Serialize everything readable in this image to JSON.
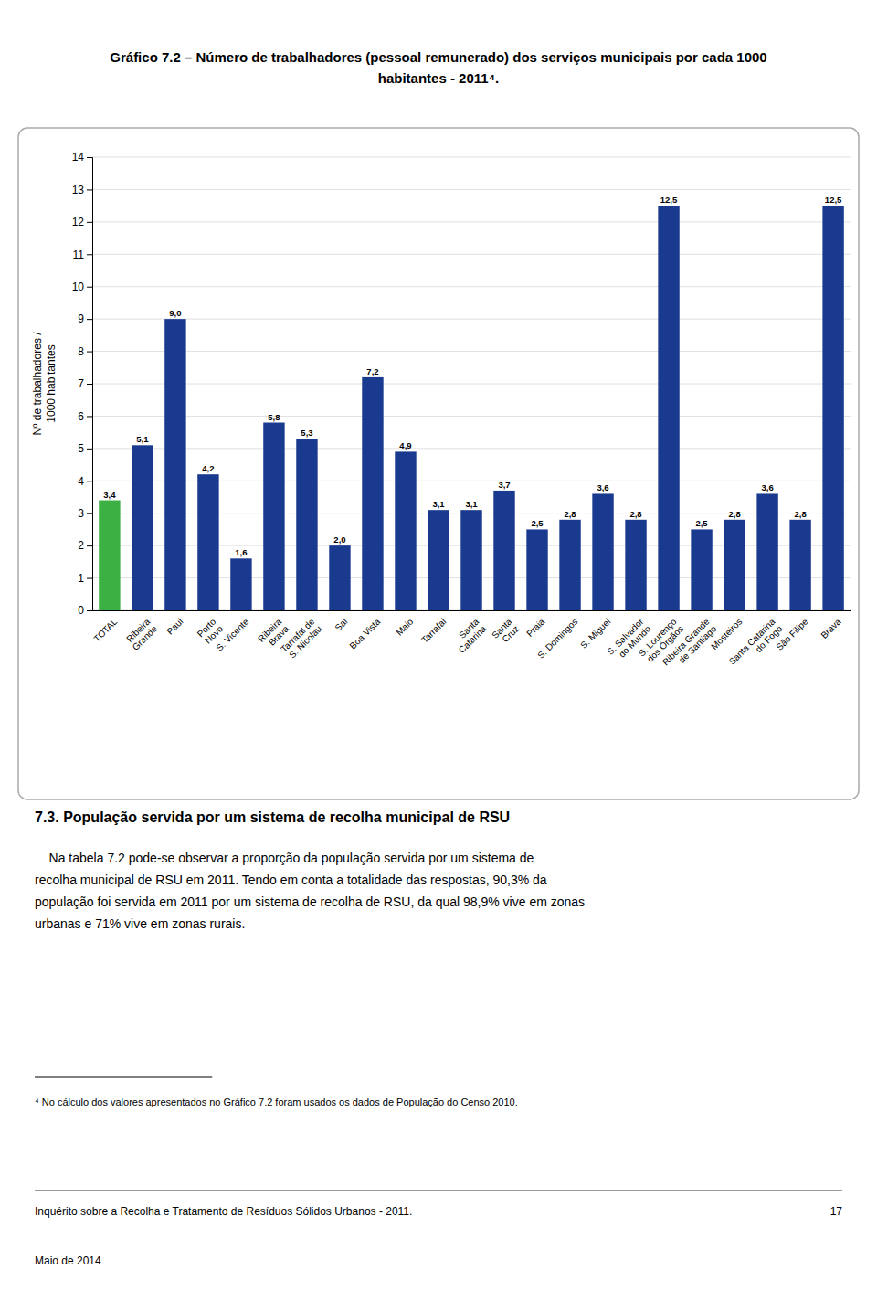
{
  "chart_data": {
    "type": "bar",
    "title": "Gráfico 7.2 – Número de trabalhadores (pessoal remunerado) dos serviços municipais por cada 1000\nhabitantes - 2011⁴.",
    "categories": [
      "TOTAL",
      "Ribeira\nGrande",
      "Paul",
      "Porto\nNovo",
      "S. Vicente",
      "Ribeira\nBrava",
      "Tarrafal de\nS. Nicolau",
      "Sal",
      "Boa Vista",
      "Maio",
      "Tarrafal",
      "Santa\nCatarina",
      "Santa\nCruz",
      "Praia",
      "S. Domingos",
      "S. Miguel",
      "S. Salvador\ndo Mundo",
      "S. Lourenço\ndos Órgãos",
      "Ribeira Grande\nde Santiago",
      "Mosteiros",
      "Santa Catarina\ndo Fogo",
      "São Filipe",
      "Brava"
    ],
    "values": [
      3.4,
      5.1,
      9.0,
      4.2,
      1.6,
      5.8,
      5.3,
      2.0,
      7.2,
      4.9,
      3.1,
      3.1,
      3.7,
      2.5,
      2.8,
      3.6,
      2.8,
      12.5,
      2.5,
      2.8,
      3.6,
      2.8,
      12.5
    ],
    "value_labels": [
      "3,4",
      "5,1",
      "9,0",
      "4,2",
      "1,6",
      "5,8",
      "5,3",
      "2,0",
      "7,2",
      "4,9",
      "3,1",
      "3,1",
      "3,7",
      "2,5",
      "2,8",
      "3,6",
      "2,8",
      "12,5",
      "2,5",
      "2,8",
      "3,6",
      "2,8",
      "12,5"
    ],
    "colors": [
      "#3cb043",
      "#1a3a8f",
      "#1a3a8f",
      "#1a3a8f",
      "#1a3a8f",
      "#1a3a8f",
      "#1a3a8f",
      "#1a3a8f",
      "#1a3a8f",
      "#1a3a8f",
      "#1a3a8f",
      "#1a3a8f",
      "#1a3a8f",
      "#1a3a8f",
      "#1a3a8f",
      "#1a3a8f",
      "#1a3a8f",
      "#1a3a8f",
      "#1a3a8f",
      "#1a3a8f",
      "#1a3a8f",
      "#1a3a8f",
      "#1a3a8f"
    ],
    "y_label": "Nº de trabalhadores /\n1000 habitantes",
    "ylim": [
      0,
      14
    ],
    "yticks": [
      0,
      1,
      2,
      3,
      4,
      5,
      6,
      7,
      8,
      9,
      10,
      11,
      12,
      13,
      14
    ],
    "grid": true,
    "data_labels": true
  },
  "section_title": "7.3. População servida por um sistema de recolha municipal de RSU",
  "paragraph": [
    "    Na tabela 7.2 pode-se observar a proporção da população servida por um sistema de",
    "recolha municipal de RSU em 2011. Tendo em conta a totalidade das respostas, 90,3% da",
    "população foi servida em 2011 por um sistema de recolha de RSU, da qual 98,9% vive em zonas",
    "urbanas e 71% vive em zonas rurais."
  ],
  "footnote": "⁴ No cálculo dos valores apresentados no Gráfico 7.2 foram usados os dados de População do Censo 2010.",
  "footer_left": "Inquérito sobre a Recolha e Tratamento de Resíduos Sólidos Urbanos - 2011.",
  "footer_right": "17",
  "footer_bottom": "Maio de 2014"
}
